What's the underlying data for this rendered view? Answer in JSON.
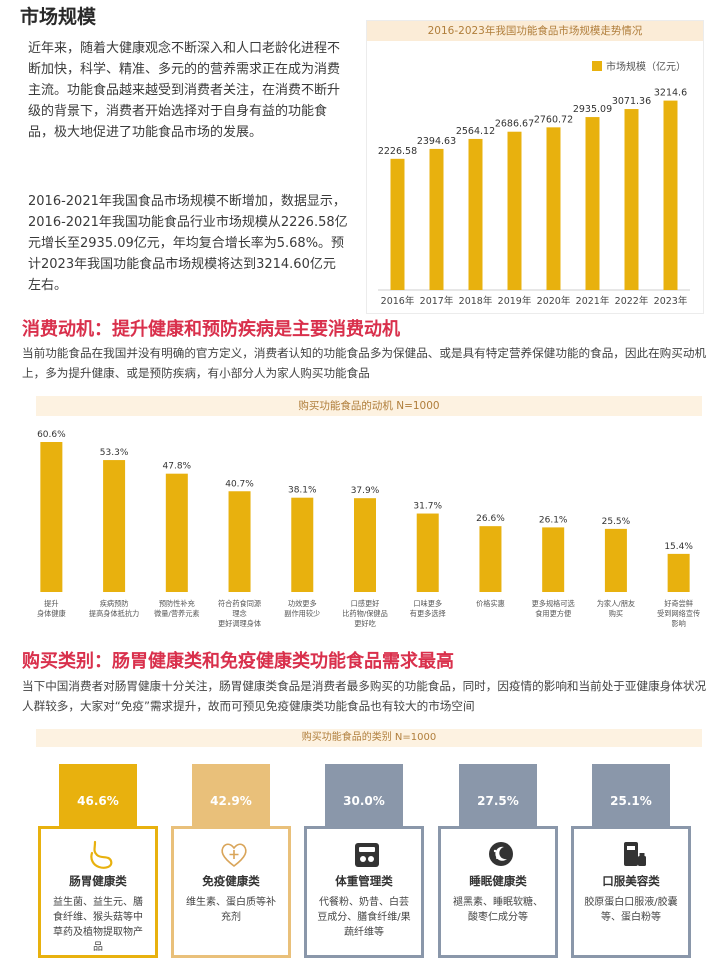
{
  "market": {
    "title": "市场规模",
    "para1": "近年来，随着大健康观念不断深入和人口老龄化进程不断加快，科学、精准、多元的的营养需求正在成为消费主流。功能食品越来越受到消费者关注，在消费不断升级的背景下，消费者开始选择对于自身有益的功能食品，极大地促进了功能食品市场的发展。",
    "para2": "2016-2021年我国食品市场规模不断增加，数据显示，2016-2021年我国功能食品行业市场规模从2226.58亿元增长至2935.09亿元，年均复合增长率为5.68%。预计2023年我国功能食品市场规模将达到3214.60亿元左右。"
  },
  "motive": {
    "title": "消费动机：提升健康和预防疾病是主要消费动机",
    "desc": "当前功能食品在我国并没有明确的官方定义，消费者认知的功能食品多为保健品、或是具有特定营养保健功能的食品，因此在购买动机上，多为提升健康、或是预防疾病，有小部分人为家人购买功能食品"
  },
  "category": {
    "title": "购买类别：肠胃健康类和免疫健康类功能食品需求最高",
    "desc": "当下中国消费者对肠胃健康十分关注，肠胃健康类食品是消费者最多购买的功能食品，同时，因疫情的影响和当前处于亚健康身体状况人群较多，大家对“免疫”需求提升，故而可预见免疫健康类功能食品也有较大的市场空间",
    "header": "购买功能食品的类别 N=1000",
    "cards": [
      {
        "pct": "46.6%",
        "name": "肠胃健康类",
        "text": "益生菌、益生元、膳食纤维、猴头菇等中草药及植物提取物产品",
        "icon": "stomach-icon",
        "color": "#e8b10e"
      },
      {
        "pct": "42.9%",
        "name": "免疫健康类",
        "text": "维生素、蛋白质等补充剂",
        "icon": "heart-plus-icon",
        "color": "#e9c07a"
      },
      {
        "pct": "30.0%",
        "name": "体重管理类",
        "text": "代餐粉、奶昔、白芸豆成分、膳食纤维/果蔬纤维等",
        "icon": "scale-icon",
        "color": "#8a97aa"
      },
      {
        "pct": "27.5%",
        "name": "睡眠健康类",
        "text": "褪黑素、睡眠软糖、酸枣仁成分等",
        "icon": "moon-icon",
        "color": "#8a97aa"
      },
      {
        "pct": "25.1%",
        "name": "口服美容类",
        "text": "胶原蛋白口服液/胶囊等、蛋白粉等",
        "icon": "bottle-icon",
        "color": "#8a97aa"
      }
    ]
  },
  "chart_data": [
    {
      "type": "bar",
      "title": "2016-2023年我国功能食品市场规模走势情况",
      "legend": "市场规模（亿元）",
      "legend_position": "top-right",
      "categories": [
        "2016年",
        "2017年",
        "2018年",
        "2019年",
        "2020年",
        "2021年",
        "2022年",
        "2023年"
      ],
      "values": [
        2226.58,
        2394.63,
        2564.12,
        2686.67,
        2760.72,
        2935.09,
        3071.36,
        3214.6
      ],
      "value_labels": [
        "2226.58",
        "2394.63",
        "2564.12",
        "2686.67",
        "2760.72",
        "2935.09",
        "3071.36",
        "3214.6"
      ],
      "ylim": [
        0,
        3700
      ],
      "color": "#e8b10e"
    },
    {
      "type": "bar",
      "title": "购买功能食品的动机 N=1000",
      "categories": [
        "提升\n身体健康",
        "疾病预防\n提高身体抵抗力",
        "预防性补充\n微量/营养元素",
        "符合药食同源\n理念\n更好调理身体",
        "功效更多\n副作用较少",
        "口感更好\n比药物/保健品\n更好吃",
        "口味更多\n有更多选择",
        "价格实惠",
        "更多规格可选\n食用更方便",
        "为家人/朋友\n购买",
        "好奇尝鲜\n受到网络宣传\n影响"
      ],
      "values": [
        60.6,
        53.3,
        47.8,
        40.7,
        38.1,
        37.9,
        31.7,
        26.6,
        26.1,
        25.5,
        15.4
      ],
      "value_labels": [
        "60.6%",
        "53.3%",
        "47.8%",
        "40.7%",
        "38.1%",
        "37.9%",
        "31.7%",
        "26.6%",
        "26.1%",
        "25.5%",
        "15.4%"
      ],
      "ylim": [
        0,
        65
      ],
      "color": "#e8b10e"
    }
  ]
}
